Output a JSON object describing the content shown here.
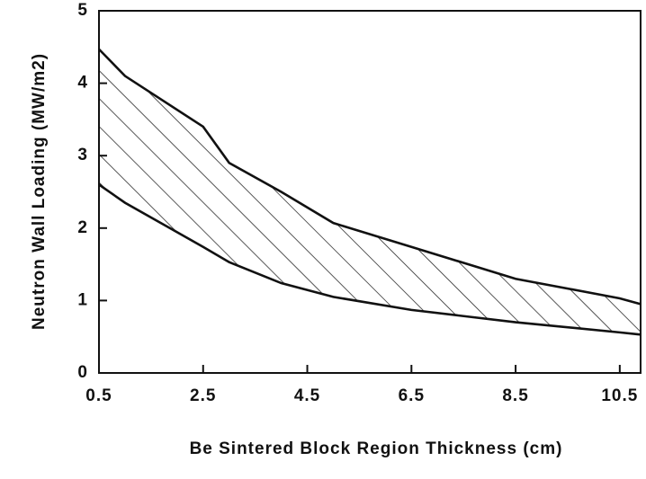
{
  "chart_data": {
    "type": "range-area",
    "x_label": "Be Sintered Block Region Thickness (cm)",
    "y_label": "Neutron Wall Loading (MW/m2)",
    "xlim": [
      0.5,
      10.9
    ],
    "ylim": [
      0,
      5
    ],
    "xticks": [
      0.5,
      2.5,
      4.5,
      6.5,
      8.5,
      10.5
    ],
    "yticks": [
      0,
      1,
      2,
      3,
      4,
      5
    ],
    "color": "#111111",
    "hatch": true,
    "series": [
      {
        "name": "upper",
        "x": [
          0.5,
          1,
          2.5,
          3,
          4,
          5,
          6.5,
          8.5,
          10.5,
          10.9
        ],
        "values": [
          4.47,
          4.1,
          3.4,
          2.9,
          2.5,
          2.07,
          1.74,
          1.3,
          1.03,
          0.95
        ]
      },
      {
        "name": "lower",
        "x": [
          0.5,
          1,
          2.5,
          3,
          4,
          5,
          6.5,
          8.5,
          10.5,
          10.9
        ],
        "values": [
          2.6,
          2.35,
          1.74,
          1.53,
          1.24,
          1.05,
          0.87,
          0.7,
          0.56,
          0.53
        ]
      }
    ]
  }
}
